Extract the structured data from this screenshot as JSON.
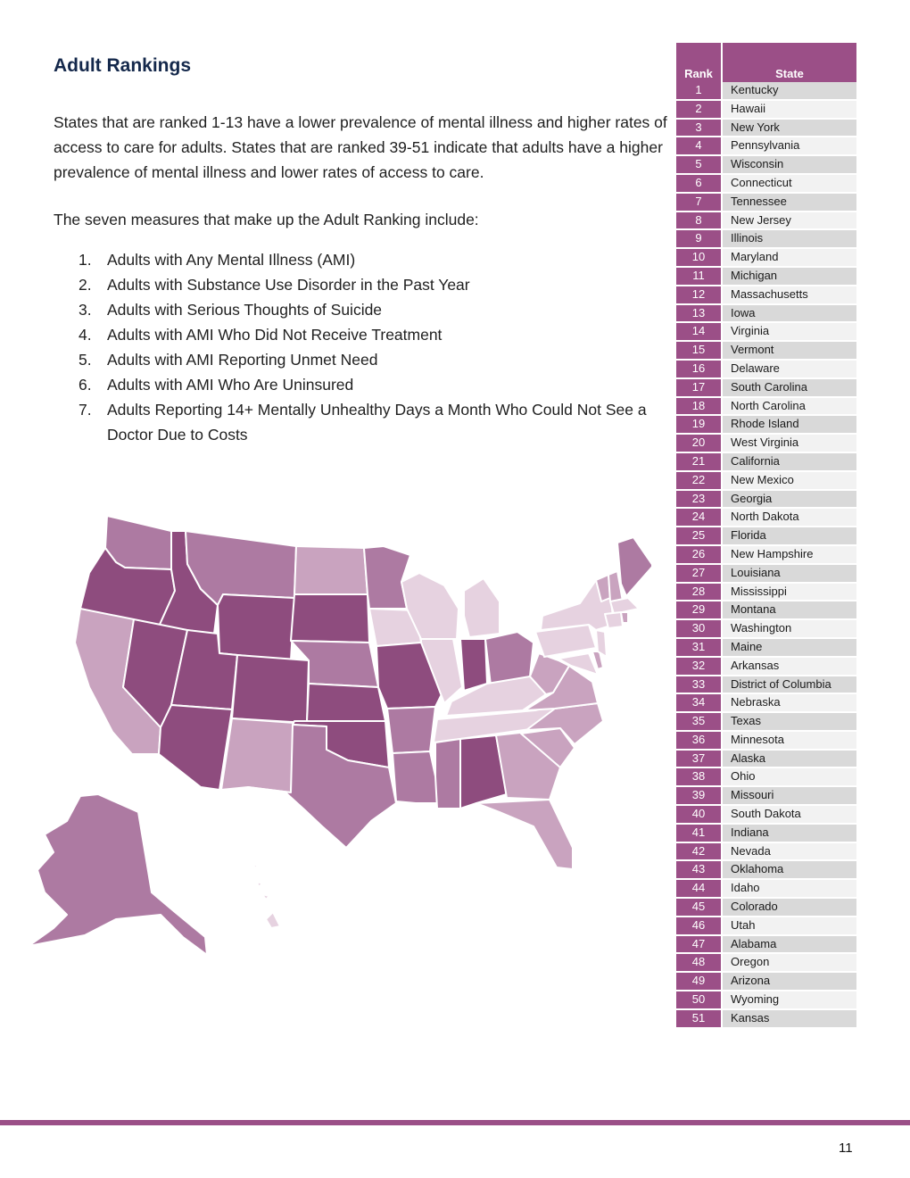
{
  "heading": "Adult Rankings",
  "intro": "States that are ranked 1-13 have a lower prevalence of mental illness and higher rates of access to care for adults. States that are ranked 39-51 indicate that adults have a higher prevalence of mental illness and lower rates of access to care.",
  "measures_intro": "The seven measures that make up the Adult Ranking include:",
  "measures": [
    "Adults with Any Mental Illness (AMI)",
    "Adults with Substance Use Disorder in the Past Year",
    "Adults with Serious Thoughts of Suicide",
    "Adults with AMI Who Did Not Receive Treatment",
    "Adults with AMI Reporting Unmet Need",
    "Adults with AMI Who Are Uninsured",
    "Adults Reporting 14+ Mentally Unhealthy Days a Month Who Could Not See a Doctor Due to Costs"
  ],
  "table": {
    "headers": {
      "rank": "Rank",
      "state": "State"
    },
    "rows": [
      [
        "1",
        "Kentucky"
      ],
      [
        "2",
        "Hawaii"
      ],
      [
        "3",
        "New York"
      ],
      [
        "4",
        "Pennsylvania"
      ],
      [
        "5",
        "Wisconsin"
      ],
      [
        "6",
        "Connecticut"
      ],
      [
        "7",
        "Tennessee"
      ],
      [
        "8",
        "New Jersey"
      ],
      [
        "9",
        "Illinois"
      ],
      [
        "10",
        "Maryland"
      ],
      [
        "11",
        "Michigan"
      ],
      [
        "12",
        "Massachusetts"
      ],
      [
        "13",
        "Iowa"
      ],
      [
        "14",
        "Virginia"
      ],
      [
        "15",
        "Vermont"
      ],
      [
        "16",
        "Delaware"
      ],
      [
        "17",
        "South Carolina"
      ],
      [
        "18",
        "North Carolina"
      ],
      [
        "19",
        "Rhode Island"
      ],
      [
        "20",
        "West Virginia"
      ],
      [
        "21",
        "California"
      ],
      [
        "22",
        "New Mexico"
      ],
      [
        "23",
        "Georgia"
      ],
      [
        "24",
        "North Dakota"
      ],
      [
        "25",
        "Florida"
      ],
      [
        "26",
        "New Hampshire"
      ],
      [
        "27",
        "Louisiana"
      ],
      [
        "28",
        "Mississippi"
      ],
      [
        "29",
        "Montana"
      ],
      [
        "30",
        "Washington"
      ],
      [
        "31",
        "Maine"
      ],
      [
        "32",
        "Arkansas"
      ],
      [
        "33",
        "District of Columbia"
      ],
      [
        "34",
        "Nebraska"
      ],
      [
        "35",
        "Texas"
      ],
      [
        "36",
        "Minnesota"
      ],
      [
        "37",
        "Alaska"
      ],
      [
        "38",
        "Ohio"
      ],
      [
        "39",
        "Missouri"
      ],
      [
        "40",
        "South Dakota"
      ],
      [
        "41",
        "Indiana"
      ],
      [
        "42",
        "Nevada"
      ],
      [
        "43",
        "Oklahoma"
      ],
      [
        "44",
        "Idaho"
      ],
      [
        "45",
        "Colorado"
      ],
      [
        "46",
        "Utah"
      ],
      [
        "47",
        "Alabama"
      ],
      [
        "48",
        "Oregon"
      ],
      [
        "49",
        "Arizona"
      ],
      [
        "50",
        "Wyoming"
      ],
      [
        "51",
        "Kansas"
      ]
    ]
  },
  "map_colors": {
    "tier1": "#e6d2e0",
    "tier2": "#c9a3bf",
    "tier3": "#ad7aa2",
    "tier4": "#8e4c7e"
  },
  "accent_color": "#9b4f87",
  "page_number": "11"
}
